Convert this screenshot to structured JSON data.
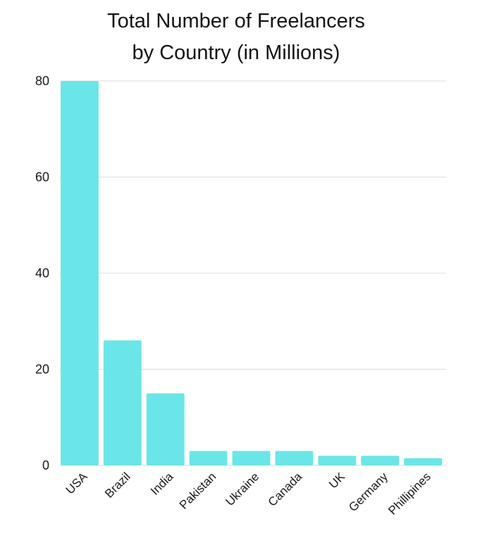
{
  "chart_data": {
    "type": "bar",
    "title_lines": [
      "Total Number of Freelancers",
      "by Country (in Millions)"
    ],
    "categories": [
      "USA",
      "Brazil",
      "India",
      "Pakistan",
      "Ukraine",
      "Canada",
      "UK",
      "Germany",
      "Phillipines"
    ],
    "values": [
      80,
      26,
      15,
      3,
      3,
      3,
      2,
      2,
      1.5
    ],
    "ylim": [
      0,
      80
    ],
    "yticks": [
      0,
      20,
      40,
      60,
      80
    ],
    "grid": true,
    "bar_color": "#6be6e8",
    "grid_color": "#dddddd"
  }
}
